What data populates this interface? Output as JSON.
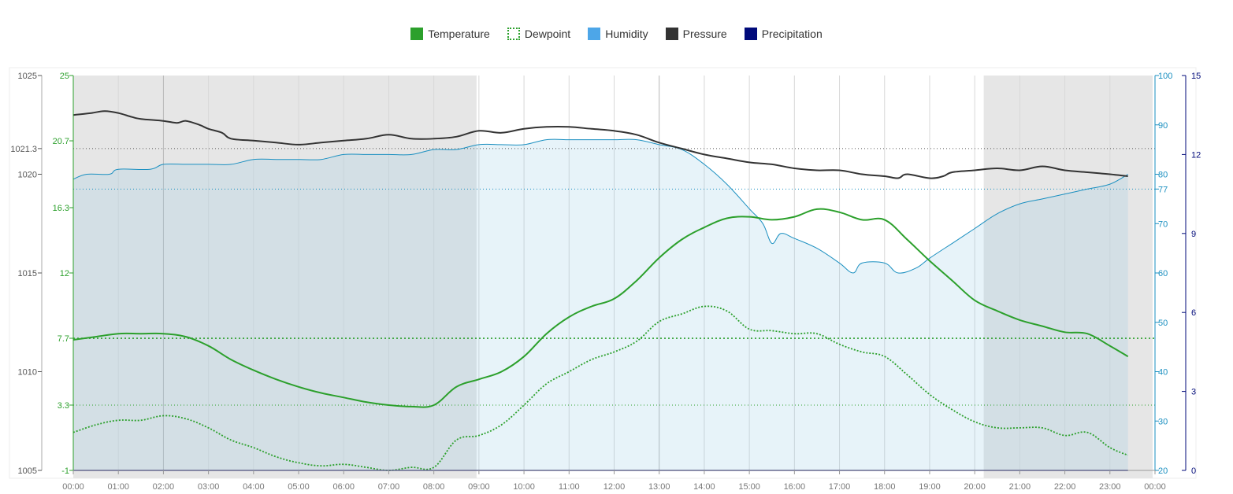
{
  "legend": [
    {
      "label": "Temperature",
      "color": "#2ca02c",
      "style": "solid"
    },
    {
      "label": "Dewpoint",
      "color": "#2ca02c",
      "style": "dotted"
    },
    {
      "label": "Humidity",
      "color": "#4da6e8",
      "style": "solid"
    },
    {
      "label": "Pressure",
      "color": "#333333",
      "style": "solid"
    },
    {
      "label": "Precipitation",
      "color": "#000a7a",
      "style": "solid"
    }
  ],
  "chart_data": {
    "type": "line",
    "x_labels": [
      "00:00",
      "01:00",
      "02:00",
      "03:00",
      "04:00",
      "05:00",
      "06:00",
      "07:00",
      "08:00",
      "09:00",
      "10:00",
      "11:00",
      "12:00",
      "13:00",
      "14:00",
      "15:00",
      "16:00",
      "17:00",
      "18:00",
      "19:00",
      "20:00",
      "21:00",
      "22:00",
      "23:00",
      "00:00"
    ],
    "night_shading": [
      [
        0.0,
        9.0
      ],
      [
        20.2,
        24.0
      ]
    ],
    "axes": {
      "pressure": {
        "ticks": [
          "1025",
          "1021.3",
          "1020",
          "1015",
          "1010",
          "1005"
        ],
        "range": [
          1005,
          1025
        ],
        "color": "#555555"
      },
      "temperature": {
        "ticks": [
          "25",
          "20.7",
          "16.3",
          "12",
          "7.7",
          "3.3",
          "-1"
        ],
        "range": [
          -1,
          25
        ],
        "color": "#2ca02c"
      },
      "humidity": {
        "ticks": [
          "100",
          "90",
          "80",
          "77",
          "70",
          "60",
          "50",
          "40",
          "30",
          "20"
        ],
        "range": [
          20,
          100
        ],
        "color": "#1a8fc0"
      },
      "precipitation": {
        "ticks": [
          "15",
          "12",
          "9",
          "6",
          "3",
          "0"
        ],
        "range": [
          0,
          15
        ],
        "color": "#000a7a"
      }
    },
    "reference_lines": {
      "pressure": 1021.3,
      "humidity": 77,
      "temperature": [
        7.7,
        3.3
      ]
    },
    "series": [
      {
        "name": "Temperature",
        "axis": "temperature",
        "x": [
          0,
          0.5,
          1,
          1.5,
          2,
          2.5,
          3,
          3.5,
          4,
          4.5,
          5,
          5.5,
          6,
          6.5,
          7,
          7.5,
          8,
          8.5,
          9,
          9.5,
          10,
          10.5,
          11,
          11.5,
          12,
          12.5,
          13,
          13.5,
          14,
          14.5,
          15,
          15.5,
          16,
          16.5,
          17,
          17.5,
          18,
          18.5,
          19,
          19.5,
          20,
          20.5,
          21,
          21.5,
          22,
          22.5,
          23,
          23.4
        ],
        "values": [
          7.6,
          7.8,
          8.0,
          8.0,
          8.0,
          7.8,
          7.2,
          6.3,
          5.6,
          5.0,
          4.5,
          4.1,
          3.8,
          3.5,
          3.3,
          3.2,
          3.3,
          4.5,
          5.0,
          5.5,
          6.5,
          8.0,
          9.1,
          9.8,
          10.3,
          11.5,
          13.0,
          14.2,
          15.0,
          15.6,
          15.7,
          15.5,
          15.7,
          16.2,
          16.0,
          15.5,
          15.5,
          14.2,
          12.8,
          11.5,
          10.2,
          9.5,
          8.9,
          8.5,
          8.1,
          8.0,
          7.2,
          6.5
        ]
      },
      {
        "name": "Dewpoint",
        "axis": "temperature",
        "x": [
          0,
          0.5,
          1,
          1.5,
          2,
          2.5,
          3,
          3.5,
          4,
          4.5,
          5,
          5.5,
          6,
          6.5,
          7,
          7.5,
          8,
          8.5,
          9,
          9.5,
          10,
          10.5,
          11,
          11.5,
          12,
          12.5,
          13,
          13.5,
          14,
          14.5,
          15,
          15.5,
          16,
          16.5,
          17,
          17.5,
          18,
          18.5,
          19,
          19.5,
          20,
          20.5,
          21,
          21.5,
          22,
          22.5,
          23,
          23.4
        ],
        "values": [
          1.5,
          2.0,
          2.3,
          2.3,
          2.6,
          2.4,
          1.8,
          1.0,
          0.5,
          -0.1,
          -0.5,
          -0.7,
          -0.6,
          -0.8,
          -1.0,
          -0.8,
          -0.8,
          1.0,
          1.3,
          2.0,
          3.3,
          4.7,
          5.5,
          6.3,
          6.8,
          7.5,
          8.8,
          9.3,
          9.8,
          9.5,
          8.3,
          8.2,
          8.0,
          8.0,
          7.3,
          6.8,
          6.5,
          5.3,
          4.0,
          3.0,
          2.2,
          1.8,
          1.8,
          1.8,
          1.3,
          1.5,
          0.5,
          0.0
        ]
      },
      {
        "name": "Humidity",
        "axis": "humidity",
        "x": [
          0,
          0.3,
          0.8,
          1.0,
          1.7,
          2.0,
          2.5,
          3.0,
          3.5,
          4.0,
          4.5,
          5.0,
          5.5,
          6.0,
          6.5,
          7.0,
          7.5,
          8.0,
          8.5,
          9.0,
          9.5,
          10.0,
          10.5,
          11.0,
          11.5,
          12.0,
          12.5,
          13.0,
          13.5,
          14.0,
          14.5,
          15.0,
          15.3,
          15.5,
          15.7,
          16.0,
          16.5,
          17.0,
          17.3,
          17.5,
          18.0,
          18.3,
          18.7,
          19.0,
          19.5,
          20.0,
          20.5,
          21.0,
          21.5,
          22.0,
          22.5,
          23.0,
          23.4
        ],
        "values": [
          79,
          80,
          80,
          81,
          81,
          82,
          82,
          82,
          82,
          83,
          83,
          83,
          83,
          84,
          84,
          84,
          84,
          85,
          85,
          86,
          86,
          86,
          87,
          87,
          87,
          87,
          87,
          86,
          85,
          82,
          78,
          73,
          70,
          66,
          68,
          67,
          65,
          62,
          60,
          62,
          62,
          60,
          61,
          63,
          66,
          69,
          72,
          74,
          75,
          76,
          77,
          78,
          80
        ]
      },
      {
        "name": "Pressure",
        "axis": "pressure",
        "x": [
          0,
          0.4,
          0.7,
          1.0,
          1.3,
          1.5,
          2.0,
          2.3,
          2.5,
          2.8,
          3.0,
          3.3,
          3.5,
          4.0,
          4.5,
          5.0,
          5.5,
          6.0,
          6.5,
          7.0,
          7.5,
          8.0,
          8.5,
          9.0,
          9.5,
          10.0,
          10.5,
          11.0,
          11.5,
          12.0,
          12.5,
          13.0,
          13.5,
          14.0,
          14.5,
          15.0,
          15.5,
          16.0,
          16.5,
          17.0,
          17.5,
          18.0,
          18.3,
          18.5,
          19.0,
          19.3,
          19.5,
          20.0,
          20.5,
          21.0,
          21.5,
          22.0,
          22.5,
          23.0,
          23.4
        ],
        "values": [
          1023.0,
          1023.1,
          1023.2,
          1023.1,
          1022.9,
          1022.8,
          1022.7,
          1022.6,
          1022.7,
          1022.5,
          1022.3,
          1022.1,
          1021.8,
          1021.7,
          1021.6,
          1021.5,
          1021.6,
          1021.7,
          1021.8,
          1022.0,
          1021.8,
          1021.8,
          1021.9,
          1022.2,
          1022.1,
          1022.3,
          1022.4,
          1022.4,
          1022.3,
          1022.2,
          1022.0,
          1021.6,
          1021.3,
          1021.0,
          1020.8,
          1020.6,
          1020.5,
          1020.3,
          1020.2,
          1020.2,
          1020.0,
          1019.9,
          1019.8,
          1020.0,
          1019.8,
          1019.9,
          1020.1,
          1020.2,
          1020.3,
          1020.2,
          1020.4,
          1020.2,
          1020.1,
          1020.0,
          1019.9
        ]
      },
      {
        "name": "Precipitation",
        "axis": "precipitation",
        "x": [
          0,
          23.4
        ],
        "values": [
          0,
          0
        ]
      }
    ]
  }
}
